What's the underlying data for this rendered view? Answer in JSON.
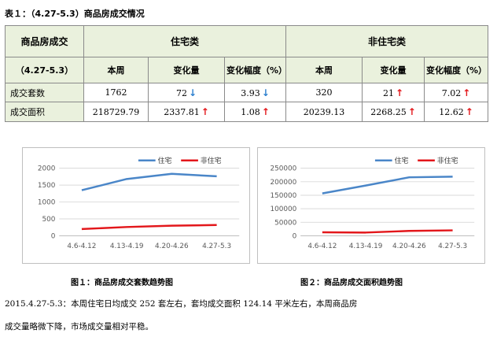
{
  "table_caption": "表１：（4.27-5.3）商品房成交情况",
  "table": {
    "corner_label": "商品房成交",
    "period_label": "（4.27-5.3）",
    "group_residential": "住宅类",
    "group_nonresidential": "非住宅类",
    "sub_headers": [
      "本周",
      "变化量",
      "变化幅度（%）",
      "本周",
      "变化量",
      "变化幅度（%）"
    ],
    "rows": [
      {
        "label": "成交套数",
        "res_week": "1762",
        "res_change": "72",
        "res_change_dir": "down",
        "res_pct": "3.93",
        "res_pct_dir": "down",
        "non_week": "320",
        "non_change": "21",
        "non_change_dir": "up",
        "non_pct": "7.02",
        "non_pct_dir": "up"
      },
      {
        "label": "成交面积",
        "res_week": "218729.79",
        "res_change": "2337.81",
        "res_change_dir": "up",
        "res_pct": "1.08",
        "res_pct_dir": "up",
        "non_week": "20239.13",
        "non_change": "2268.25",
        "non_change_dir": "up",
        "non_pct": "12.62",
        "non_pct_dir": "up"
      }
    ],
    "arrow_glyphs": {
      "up": "↑",
      "down": "↓"
    }
  },
  "colors": {
    "residential": "#4a86c8",
    "nonresidential": "#e3171b",
    "grid": "#d9d9d9"
  },
  "chart_data": [
    {
      "type": "line",
      "categories": [
        "4.6-4.12",
        "4.13-4.19",
        "4.20-4.26",
        "4.27-5.3"
      ],
      "series": [
        {
          "name": "住宅",
          "values": [
            1350,
            1680,
            1834,
            1762
          ]
        },
        {
          "name": "非住宅",
          "values": [
            200,
            260,
            299,
            320
          ]
        }
      ],
      "ylim": [
        0,
        2000
      ],
      "yticks": [
        "0",
        "500",
        "1000",
        "1500",
        "2000"
      ],
      "ytick_values": [
        0,
        500,
        1000,
        1500,
        2000
      ],
      "grid": true,
      "legend": "top"
    },
    {
      "type": "line",
      "categories": [
        "4.6-4.12",
        "4.13-4.19",
        "4.20-4.26",
        "4.27-5.3"
      ],
      "series": [
        {
          "name": "住宅",
          "values": [
            157000,
            186000,
            216392,
            218730
          ]
        },
        {
          "name": "非住宅",
          "values": [
            13000,
            12000,
            17971,
            20239
          ]
        }
      ],
      "ylim": [
        0,
        250000
      ],
      "yticks": [
        "0",
        "50000",
        "100000",
        "150000",
        "200000",
        "250000"
      ],
      "ytick_values": [
        0,
        50000,
        100000,
        150000,
        200000,
        250000
      ],
      "grid": true,
      "legend": "top"
    }
  ],
  "figure_captions": [
    "图１：商品房成交套数趋势图",
    "图２：商品房成交面积趋势图"
  ],
  "paragraph_lines": [
    "2015.4.27-5.3：本周住宅日均成交 252 套左右，套均成交面积 124.14 平米左右，本周商品房",
    "成交量略微下降，市场成交量相对平稳。"
  ]
}
